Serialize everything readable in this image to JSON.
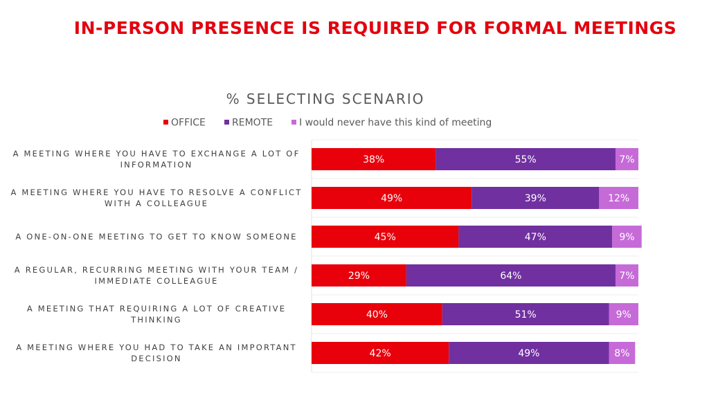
{
  "chart_data": {
    "type": "stacked-bar-horizontal",
    "title": "IN-PERSON PRESENCE IS REQUIRED FOR FORMAL MEETINGS",
    "subtitle": "% SELECTING SCENARIO",
    "categories": [
      "A MEETING WHERE YOU HAVE TO EXCHANGE A LOT OF INFORMATION",
      "A MEETING WHERE YOU HAVE TO RESOLVE A CONFLICT WITH A COLLEAGUE",
      "A ONE-ON-ONE MEETING TO GET TO KNOW SOMEONE",
      "A REGULAR, RECURRING MEETING WITH YOUR TEAM / IMMEDIATE COLLEAGUE",
      "A MEETING THAT REQUIRING A LOT OF CREATIVE THINKING",
      "A MEETING WHERE YOU HAD TO TAKE AN IMPORTANT DECISION"
    ],
    "series": [
      {
        "name": "OFFICE",
        "color": "#e8000b",
        "values": [
          38,
          49,
          45,
          29,
          40,
          42
        ],
        "value_labels": [
          "38%",
          "49%",
          "45%",
          "29%",
          "40%",
          "42%"
        ]
      },
      {
        "name": "REMOTE",
        "color": "#7030a0",
        "values": [
          55,
          39,
          47,
          64,
          51,
          49
        ],
        "value_labels": [
          "55%",
          "39%",
          "47%",
          "64%",
          "51%",
          "49%"
        ]
      },
      {
        "name": "I would never have this kind of meeting",
        "color": "#c66ad8",
        "values": [
          7,
          12,
          9,
          7,
          9,
          8
        ],
        "value_labels": [
          "7%",
          "12%",
          "9%",
          "7%",
          "9%",
          "8%"
        ]
      }
    ],
    "xlim": [
      0,
      100
    ]
  }
}
